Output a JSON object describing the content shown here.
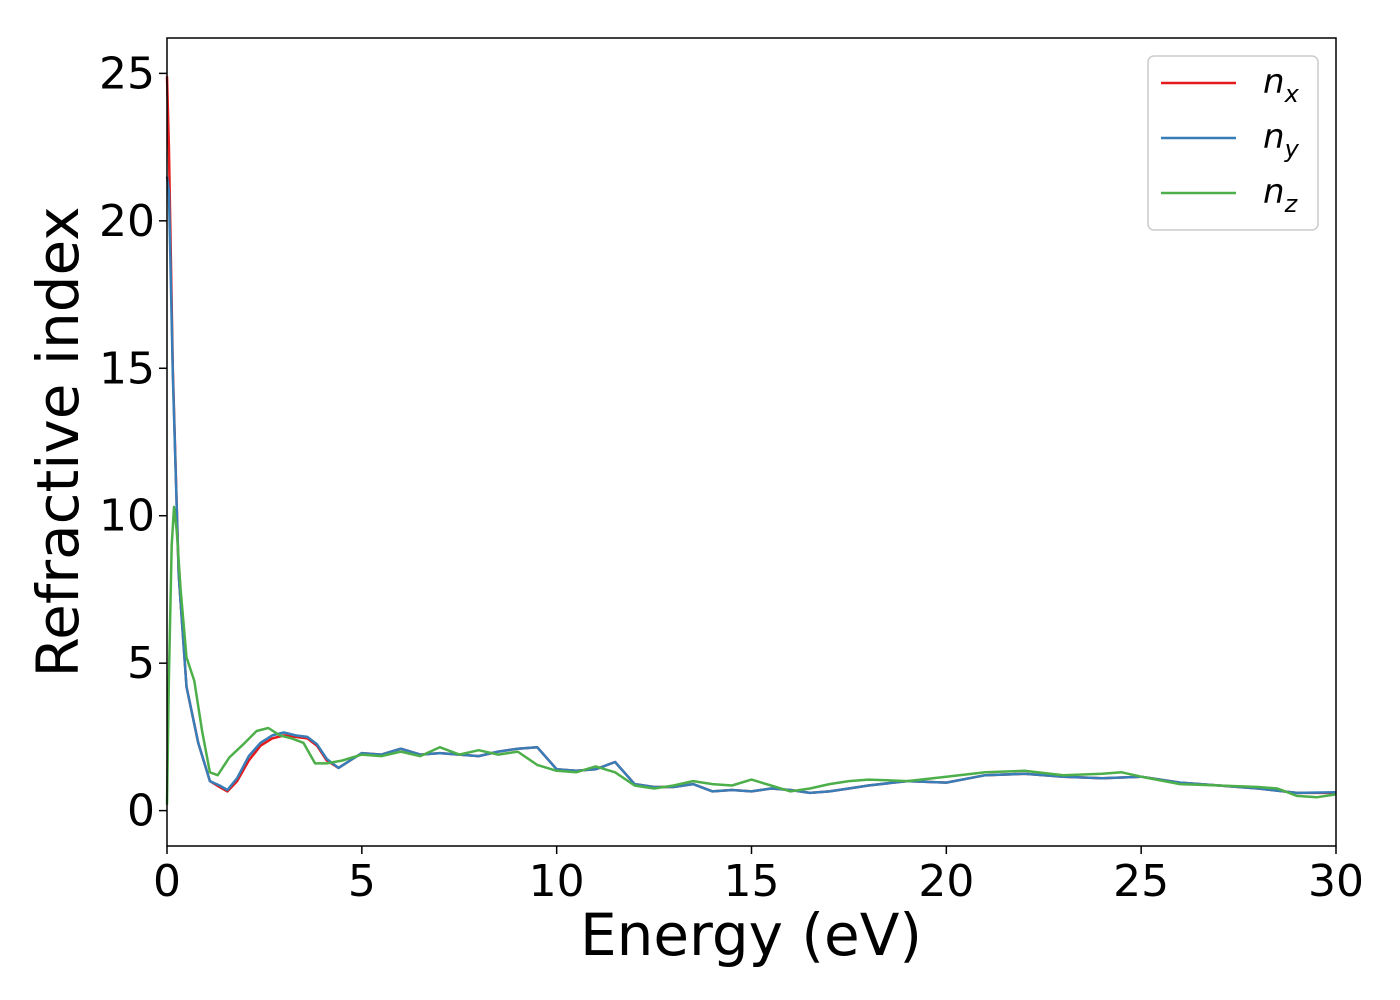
{
  "chart_data": {
    "type": "line",
    "xlabel": "Energy (eV)",
    "ylabel": "Refractive index",
    "xlim": [
      0,
      30
    ],
    "ylim": [
      -1.2,
      26.2
    ],
    "xticks": [
      0,
      5,
      10,
      15,
      20,
      25,
      30
    ],
    "yticks": [
      0,
      5,
      10,
      15,
      20,
      25
    ],
    "grid": false,
    "legend_position": "top-right",
    "series": [
      {
        "name": "n",
        "subscript": "x",
        "color": "#e41a1c",
        "x": [
          0,
          0.05,
          0.15,
          0.3,
          0.5,
          0.8,
          1.1,
          1.35,
          1.55,
          1.8,
          2.1,
          2.4,
          2.7,
          3.0,
          3.3,
          3.6,
          3.85,
          4.1,
          4.4,
          4.7,
          5.0,
          5.5,
          6.0,
          6.5,
          7.0,
          7.5,
          8.0,
          8.5,
          9.0,
          9.5,
          10.0,
          10.5,
          11.0,
          11.5,
          12.0,
          12.5,
          13.0,
          13.5,
          14.0,
          14.5,
          15.0,
          15.5,
          16.0,
          16.5,
          17.0,
          17.5,
          18.0,
          19.0,
          20.0,
          21.0,
          22.0,
          23.0,
          24.0,
          25.0,
          26.0,
          27.0,
          28.0,
          29.0,
          30.0
        ],
        "y": [
          24.9,
          22.5,
          15.0,
          8.0,
          4.2,
          2.3,
          1.0,
          0.8,
          0.65,
          1.0,
          1.7,
          2.2,
          2.45,
          2.55,
          2.5,
          2.45,
          2.2,
          1.7,
          1.45,
          1.7,
          1.95,
          1.9,
          2.1,
          1.9,
          1.95,
          1.9,
          1.85,
          2.0,
          2.1,
          2.15,
          1.4,
          1.35,
          1.4,
          1.65,
          0.9,
          0.8,
          0.8,
          0.9,
          0.65,
          0.7,
          0.65,
          0.75,
          0.7,
          0.6,
          0.65,
          0.75,
          0.85,
          1.0,
          0.95,
          1.2,
          1.25,
          1.15,
          1.1,
          1.15,
          0.95,
          0.85,
          0.75,
          0.6,
          0.6
        ]
      },
      {
        "name": "n",
        "subscript": "y",
        "color": "#377eb8",
        "x": [
          0,
          0.05,
          0.15,
          0.3,
          0.5,
          0.8,
          1.1,
          1.35,
          1.55,
          1.8,
          2.1,
          2.4,
          2.7,
          3.0,
          3.3,
          3.6,
          3.85,
          4.1,
          4.4,
          4.7,
          5.0,
          5.5,
          6.0,
          6.5,
          7.0,
          7.5,
          8.0,
          8.5,
          9.0,
          9.5,
          10.0,
          10.5,
          11.0,
          11.5,
          12.0,
          12.5,
          13.0,
          13.5,
          14.0,
          14.5,
          15.0,
          15.5,
          16.0,
          16.5,
          17.0,
          17.5,
          18.0,
          19.0,
          20.0,
          21.0,
          22.0,
          23.0,
          24.0,
          25.0,
          26.0,
          27.0,
          28.0,
          29.0,
          30.0
        ],
        "y": [
          21.5,
          21.0,
          14.8,
          8.0,
          4.2,
          2.3,
          1.0,
          0.85,
          0.7,
          1.1,
          1.85,
          2.3,
          2.55,
          2.65,
          2.55,
          2.5,
          2.25,
          1.75,
          1.45,
          1.7,
          1.95,
          1.9,
          2.1,
          1.9,
          1.95,
          1.9,
          1.85,
          2.0,
          2.1,
          2.15,
          1.4,
          1.35,
          1.4,
          1.65,
          0.9,
          0.8,
          0.8,
          0.9,
          0.65,
          0.7,
          0.65,
          0.75,
          0.7,
          0.6,
          0.65,
          0.75,
          0.85,
          1.0,
          0.95,
          1.2,
          1.25,
          1.15,
          1.1,
          1.15,
          0.95,
          0.85,
          0.75,
          0.6,
          0.62
        ]
      },
      {
        "name": "n",
        "subscript": "z",
        "color": "#4daf4a",
        "x": [
          0,
          0.05,
          0.12,
          0.18,
          0.25,
          0.35,
          0.5,
          0.7,
          0.9,
          1.1,
          1.3,
          1.6,
          2.0,
          2.3,
          2.6,
          2.9,
          3.2,
          3.5,
          3.8,
          4.1,
          4.5,
          5.0,
          5.5,
          6.0,
          6.5,
          7.0,
          7.5,
          8.0,
          8.5,
          9.0,
          9.5,
          10.0,
          10.5,
          11.0,
          11.5,
          12.0,
          12.5,
          13.0,
          13.5,
          14.0,
          14.5,
          15.0,
          15.5,
          16.0,
          16.5,
          17.0,
          17.5,
          18.0,
          19.0,
          20.0,
          21.0,
          22.0,
          23.0,
          24.0,
          24.5,
          25.0,
          26.0,
          27.0,
          28.0,
          28.5,
          29.0,
          29.5,
          30.0
        ],
        "y": [
          0.2,
          4.5,
          9.0,
          10.3,
          9.5,
          7.5,
          5.2,
          4.4,
          2.7,
          1.3,
          1.2,
          1.8,
          2.3,
          2.7,
          2.8,
          2.55,
          2.45,
          2.3,
          1.6,
          1.6,
          1.7,
          1.9,
          1.85,
          2.0,
          1.85,
          2.15,
          1.9,
          2.05,
          1.9,
          2.0,
          1.55,
          1.35,
          1.3,
          1.5,
          1.3,
          0.85,
          0.75,
          0.85,
          1.0,
          0.9,
          0.85,
          1.05,
          0.85,
          0.65,
          0.75,
          0.9,
          1.0,
          1.05,
          1.0,
          1.15,
          1.3,
          1.35,
          1.2,
          1.25,
          1.3,
          1.15,
          0.9,
          0.85,
          0.8,
          0.75,
          0.5,
          0.45,
          0.55
        ]
      }
    ]
  }
}
